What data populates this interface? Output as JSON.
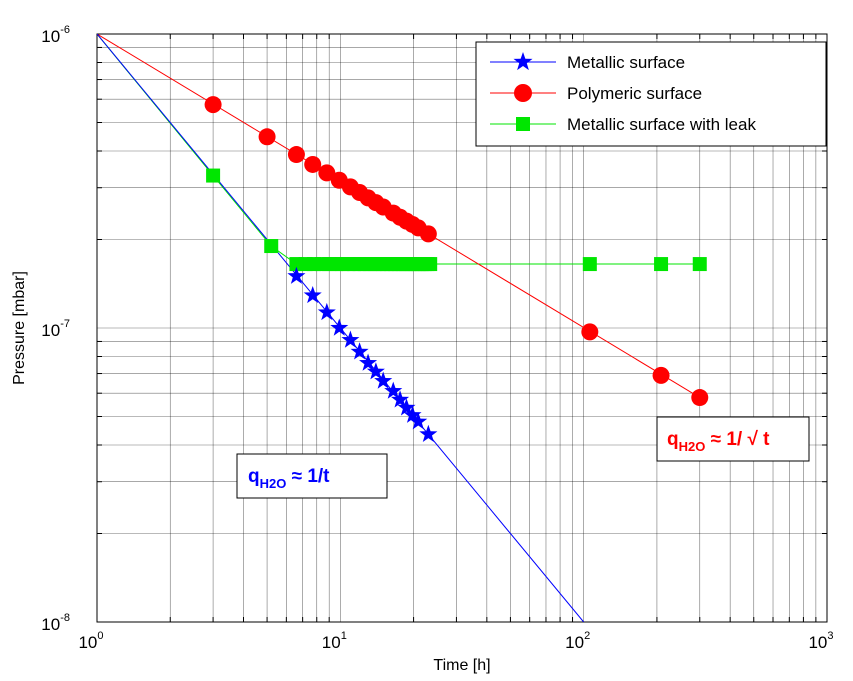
{
  "chart_data": {
    "type": "line",
    "xscale": "log",
    "yscale": "log",
    "xlim": [
      1,
      1000
    ],
    "ylim": [
      1e-08,
      1e-06
    ],
    "grid": true,
    "xlabel": "Time [h]",
    "ylabel": "Pressure [mbar]",
    "x_ticks": [
      {
        "value": 1,
        "label": "10",
        "exp": "0"
      },
      {
        "value": 10,
        "label": "10",
        "exp": "1"
      },
      {
        "value": 100,
        "label": "10",
        "exp": "2"
      },
      {
        "value": 1000,
        "label": "10",
        "exp": "3"
      }
    ],
    "y_ticks": [
      {
        "value": 1e-08,
        "label": "10",
        "exp": "-8"
      },
      {
        "value": 1e-07,
        "label": "10",
        "exp": "-7"
      },
      {
        "value": 1e-06,
        "label": "10",
        "exp": "-6"
      }
    ],
    "legend": {
      "position": "top-right",
      "entries": [
        {
          "name": "Metallic surface",
          "series": 0
        },
        {
          "name": "Polymeric surface",
          "series": 1
        },
        {
          "name": "Metallic surface with leak",
          "series": 2
        }
      ]
    },
    "series": [
      {
        "name": "Metallic surface",
        "color": "#0000ff",
        "marker": "star",
        "line_x": [
          1,
          100
        ],
        "line_y": [
          1e-06,
          1e-08
        ],
        "x": [
          6.6,
          7.7,
          8.8,
          9.9,
          11,
          12,
          13,
          14,
          15,
          16.5,
          17.6,
          18.7,
          19.8,
          20.9,
          23
        ],
        "y": [
          1.5e-07,
          1.29e-07,
          1.13e-07,
          1e-07,
          9.1e-08,
          8.3e-08,
          7.6e-08,
          7.1e-08,
          6.6e-08,
          6.1e-08,
          5.7e-08,
          5.35e-08,
          5.05e-08,
          4.8e-08,
          4.35e-08
        ]
      },
      {
        "name": "Polymeric surface",
        "color": "#ff0000",
        "marker": "circle",
        "line_x": [
          1,
          300
        ],
        "line_y": [
          1e-06,
          5.8e-08
        ],
        "x": [
          3,
          5,
          6.6,
          7.7,
          8.8,
          9.9,
          11,
          12,
          13,
          14,
          15,
          16.5,
          17.6,
          18.7,
          19.8,
          20.9,
          23,
          106,
          208,
          300
        ],
        "y": [
          5.75e-07,
          4.47e-07,
          3.89e-07,
          3.6e-07,
          3.37e-07,
          3.18e-07,
          3.02e-07,
          2.89e-07,
          2.77e-07,
          2.67e-07,
          2.58e-07,
          2.46e-07,
          2.38e-07,
          2.31e-07,
          2.25e-07,
          2.19e-07,
          2.09e-07,
          9.7e-08,
          6.9e-08,
          5.8e-08
        ]
      },
      {
        "name": "Metallic surface with leak",
        "color": "#00e600",
        "marker": "square",
        "line_x": [
          1,
          3,
          5.2,
          6.6,
          300
        ],
        "line_y": [
          1e-06,
          3.3e-07,
          1.9e-07,
          1.65e-07,
          1.65e-07
        ],
        "x": [
          3,
          5.2,
          6.6,
          7.2,
          7.8,
          8.4,
          9,
          9.6,
          10.2,
          10.8,
          11.4,
          12,
          12.6,
          13.2,
          13.8,
          14.4,
          15,
          15.6,
          16.2,
          16.8,
          17.4,
          18,
          18.6,
          19.2,
          19.8,
          20.4,
          21,
          21.6,
          22.2,
          22.8,
          23.4,
          106,
          208,
          300
        ],
        "y": [
          3.3e-07,
          1.9e-07,
          1.65e-07,
          1.65e-07,
          1.65e-07,
          1.65e-07,
          1.65e-07,
          1.65e-07,
          1.65e-07,
          1.65e-07,
          1.65e-07,
          1.65e-07,
          1.65e-07,
          1.65e-07,
          1.65e-07,
          1.65e-07,
          1.65e-07,
          1.65e-07,
          1.65e-07,
          1.65e-07,
          1.65e-07,
          1.65e-07,
          1.65e-07,
          1.65e-07,
          1.65e-07,
          1.65e-07,
          1.65e-07,
          1.65e-07,
          1.65e-07,
          1.65e-07,
          1.65e-07,
          1.65e-07,
          1.65e-07,
          1.65e-07
        ]
      }
    ],
    "annotations": [
      {
        "name": "metallic-formula",
        "color": "#0000ff",
        "prefix": "q",
        "sub": "H2O",
        "suffix": " ≈ 1/t"
      },
      {
        "name": "polymeric-formula",
        "color": "#ff0000",
        "prefix": "q",
        "sub": "H2O",
        "suffix": " ≈ 1/ √ t"
      }
    ]
  }
}
